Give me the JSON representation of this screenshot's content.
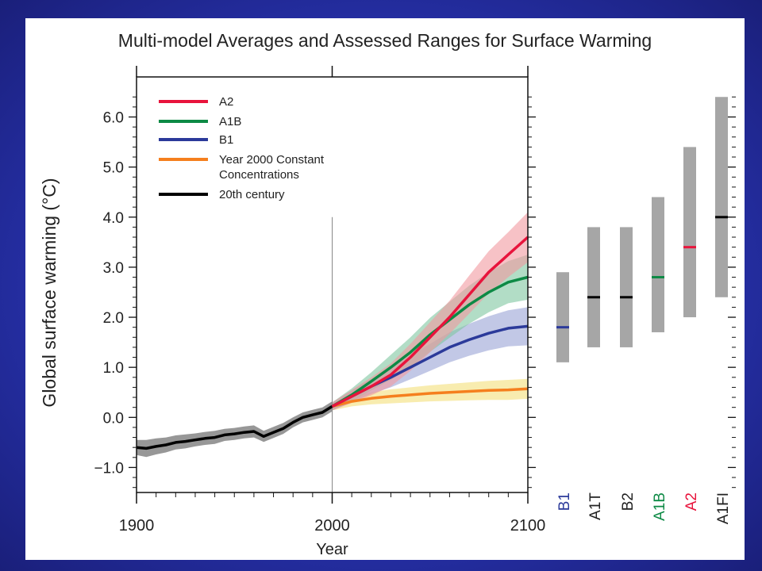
{
  "chart_data": [
    {
      "type": "line",
      "title": "Multi-model Averages and Assessed Ranges for Surface Warming",
      "xlabel": "Year",
      "ylabel": "Global surface warming (°C)",
      "xlim": [
        1900,
        2100
      ],
      "ylim": [
        -1.5,
        6.8
      ],
      "x_ticks": [
        "1900",
        "2000",
        "2100"
      ],
      "y_ticks": [
        "6.0",
        "5.0",
        "4.0",
        "3.0",
        "2.0",
        "1.0",
        "0.0",
        "−1.0"
      ],
      "grid": false,
      "legend_position": "top-left",
      "legend": [
        "A2",
        "A1B",
        "B1",
        "Year 2000 Constant Concentrations",
        "20th century"
      ],
      "series": [
        {
          "name": "20th century",
          "color": "#000000",
          "band_color": "#8c8c8c",
          "x": [
            1900,
            1905,
            1910,
            1915,
            1920,
            1925,
            1930,
            1935,
            1940,
            1945,
            1950,
            1955,
            1960,
            1965,
            1970,
            1975,
            1980,
            1985,
            1990,
            1995,
            2000
          ],
          "y": [
            -0.6,
            -0.62,
            -0.58,
            -0.55,
            -0.5,
            -0.48,
            -0.45,
            -0.42,
            -0.4,
            -0.35,
            -0.33,
            -0.3,
            -0.28,
            -0.38,
            -0.3,
            -0.22,
            -0.1,
            0.0,
            0.05,
            0.1,
            0.22
          ],
          "band_width": [
            0.15,
            0.17,
            0.16,
            0.15,
            0.14,
            0.14,
            0.13,
            0.13,
            0.13,
            0.12,
            0.12,
            0.12,
            0.12,
            0.11,
            0.11,
            0.11,
            0.1,
            0.1,
            0.1,
            0.1,
            0.1
          ]
        },
        {
          "name": "A2",
          "color": "#e8143c",
          "band_color": "#f19aa0",
          "x": [
            2000,
            2010,
            2020,
            2030,
            2040,
            2050,
            2060,
            2070,
            2080,
            2090,
            2100
          ],
          "y": [
            0.22,
            0.42,
            0.62,
            0.85,
            1.2,
            1.6,
            2.0,
            2.45,
            2.9,
            3.25,
            3.6
          ],
          "band_width": [
            0.08,
            0.13,
            0.18,
            0.23,
            0.27,
            0.3,
            0.33,
            0.38,
            0.42,
            0.45,
            0.5
          ]
        },
        {
          "name": "A1B",
          "color": "#0d8a45",
          "band_color": "#7fc7a0",
          "x": [
            2000,
            2010,
            2020,
            2030,
            2040,
            2050,
            2060,
            2070,
            2080,
            2090,
            2100
          ],
          "y": [
            0.22,
            0.45,
            0.72,
            1.0,
            1.3,
            1.65,
            1.95,
            2.25,
            2.5,
            2.7,
            2.8
          ],
          "band_width": [
            0.08,
            0.13,
            0.18,
            0.25,
            0.3,
            0.34,
            0.36,
            0.38,
            0.4,
            0.42,
            0.45
          ]
        },
        {
          "name": "B1",
          "color": "#2b3a9a",
          "band_color": "#9aa3d6",
          "x": [
            2000,
            2010,
            2020,
            2030,
            2040,
            2050,
            2060,
            2070,
            2080,
            2090,
            2100
          ],
          "y": [
            0.22,
            0.42,
            0.62,
            0.8,
            1.0,
            1.2,
            1.4,
            1.55,
            1.68,
            1.78,
            1.82
          ],
          "band_width": [
            0.08,
            0.12,
            0.15,
            0.2,
            0.24,
            0.27,
            0.3,
            0.32,
            0.34,
            0.36,
            0.38
          ]
        },
        {
          "name": "Year 2000 Constant Concentrations",
          "color": "#f57f1e",
          "band_color": "#f3e07a",
          "x": [
            2000,
            2010,
            2020,
            2030,
            2040,
            2050,
            2060,
            2070,
            2080,
            2090,
            2100
          ],
          "y": [
            0.22,
            0.32,
            0.38,
            0.42,
            0.45,
            0.48,
            0.5,
            0.52,
            0.54,
            0.55,
            0.57
          ],
          "band_width": [
            0.08,
            0.1,
            0.12,
            0.14,
            0.15,
            0.16,
            0.17,
            0.18,
            0.19,
            0.2,
            0.2
          ]
        }
      ]
    },
    {
      "type": "range-bar",
      "categories": [
        "B1",
        "A1T",
        "B2",
        "A1B",
        "A2",
        "A1FI"
      ],
      "label_colors": [
        "#2b3a9a",
        "#222222",
        "#222222",
        "#0d8a45",
        "#e8143c",
        "#222222"
      ],
      "range_low": [
        1.1,
        1.4,
        1.4,
        1.7,
        2.0,
        2.4
      ],
      "range_high": [
        2.9,
        3.8,
        3.8,
        4.4,
        5.4,
        6.4
      ],
      "best_estimate": [
        1.8,
        2.4,
        2.4,
        2.8,
        3.4,
        4.0
      ],
      "best_colors": [
        "#2b3a9a",
        "#000000",
        "#000000",
        "#0d8a45",
        "#e8143c",
        "#000000"
      ]
    }
  ]
}
